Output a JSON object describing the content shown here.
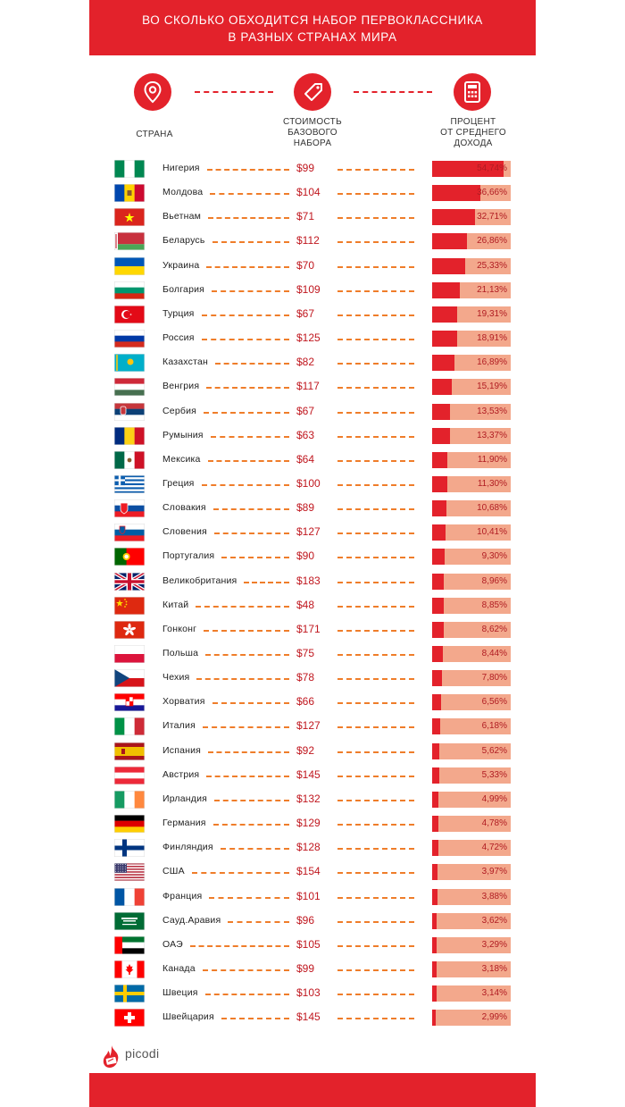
{
  "header": {
    "title_line1": "ВО СКОЛЬКО ОБХОДИТСЯ НАБОР ПЕРВОКЛАССНИКА",
    "title_line2": "В РАЗНЫХ СТРАНАХ МИРА"
  },
  "columns": {
    "country": [
      "СТРАНА"
    ],
    "cost": [
      "СТОИМОСТЬ",
      "БАЗОВОГО",
      "НАБОРА"
    ],
    "percent": [
      "ПРОЦЕНТ",
      "ОТ СРЕДНЕГО",
      "ДОХОДА"
    ]
  },
  "icons": {
    "country": "map-pin-icon",
    "cost": "price-tag-icon",
    "percent": "calculator-icon"
  },
  "colors": {
    "brand_red": "#e3222b",
    "bar_background": "#f3a88c",
    "dash_orange": "#ef7d2a",
    "price_text": "#c0171f"
  },
  "logo": {
    "text": "picodi"
  },
  "chart_data": {
    "type": "bar",
    "orientation": "horizontal",
    "title": "ВО СКОЛЬКО ОБХОДИТСЯ НАБОР ПЕРВОКЛАССНИКА В РАЗНЫХ СТРАНАХ МИРА",
    "xlim": [
      0,
      60
    ],
    "rows": [
      {
        "country": "Нигерия",
        "price": "$99",
        "percent": 54.74,
        "percent_label": "54,74%",
        "flag": "nigeria"
      },
      {
        "country": "Молдова",
        "price": "$104",
        "percent": 36.66,
        "percent_label": "36,66%",
        "flag": "moldova"
      },
      {
        "country": "Вьетнам",
        "price": "$71",
        "percent": 32.71,
        "percent_label": "32,71%",
        "flag": "vietnam"
      },
      {
        "country": "Беларусь",
        "price": "$112",
        "percent": 26.86,
        "percent_label": "26,86%",
        "flag": "belarus"
      },
      {
        "country": "Украина",
        "price": "$70",
        "percent": 25.33,
        "percent_label": "25,33%",
        "flag": "ukraine"
      },
      {
        "country": "Болгария",
        "price": "$109",
        "percent": 21.13,
        "percent_label": "21,13%",
        "flag": "bulgaria"
      },
      {
        "country": "Турция",
        "price": "$67",
        "percent": 19.31,
        "percent_label": "19,31%",
        "flag": "turkey"
      },
      {
        "country": "Россия",
        "price": "$125",
        "percent": 18.91,
        "percent_label": "18,91%",
        "flag": "russia"
      },
      {
        "country": "Казахстан",
        "price": "$82",
        "percent": 16.89,
        "percent_label": "16,89%",
        "flag": "kazakhstan"
      },
      {
        "country": "Венгрия",
        "price": "$117",
        "percent": 15.19,
        "percent_label": "15,19%",
        "flag": "hungary"
      },
      {
        "country": "Сербия",
        "price": "$67",
        "percent": 13.53,
        "percent_label": "13,53%",
        "flag": "serbia"
      },
      {
        "country": "Румыния",
        "price": "$63",
        "percent": 13.37,
        "percent_label": "13,37%",
        "flag": "romania"
      },
      {
        "country": "Мексика",
        "price": "$64",
        "percent": 11.9,
        "percent_label": "11,90%",
        "flag": "mexico"
      },
      {
        "country": "Греция",
        "price": "$100",
        "percent": 11.3,
        "percent_label": "11,30%",
        "flag": "greece"
      },
      {
        "country": "Словакия",
        "price": "$89",
        "percent": 10.68,
        "percent_label": "10,68%",
        "flag": "slovakia"
      },
      {
        "country": "Словения",
        "price": "$127",
        "percent": 10.41,
        "percent_label": "10,41%",
        "flag": "slovenia"
      },
      {
        "country": "Португалия",
        "price": "$90",
        "percent": 9.3,
        "percent_label": "9,30%",
        "flag": "portugal"
      },
      {
        "country": "Великобритания",
        "price": "$183",
        "percent": 8.96,
        "percent_label": "8,96%",
        "flag": "uk"
      },
      {
        "country": "Китай",
        "price": "$48",
        "percent": 8.85,
        "percent_label": "8,85%",
        "flag": "china"
      },
      {
        "country": "Гонконг",
        "price": "$171",
        "percent": 8.62,
        "percent_label": "8,62%",
        "flag": "hongkong"
      },
      {
        "country": "Польша",
        "price": "$75",
        "percent": 8.44,
        "percent_label": "8,44%",
        "flag": "poland"
      },
      {
        "country": "Чехия",
        "price": "$78",
        "percent": 7.8,
        "percent_label": "7,80%",
        "flag": "czechia"
      },
      {
        "country": "Хорватия",
        "price": "$66",
        "percent": 6.56,
        "percent_label": "6,56%",
        "flag": "croatia"
      },
      {
        "country": "Италия",
        "price": "$127",
        "percent": 6.18,
        "percent_label": "6,18%",
        "flag": "italy"
      },
      {
        "country": "Испания",
        "price": "$92",
        "percent": 5.62,
        "percent_label": "5,62%",
        "flag": "spain"
      },
      {
        "country": "Австрия",
        "price": "$145",
        "percent": 5.33,
        "percent_label": "5,33%",
        "flag": "austria"
      },
      {
        "country": "Ирландия",
        "price": "$132",
        "percent": 4.99,
        "percent_label": "4,99%",
        "flag": "ireland"
      },
      {
        "country": "Германия",
        "price": "$129",
        "percent": 4.78,
        "percent_label": "4,78%",
        "flag": "germany"
      },
      {
        "country": "Финляндия",
        "price": "$128",
        "percent": 4.72,
        "percent_label": "4,72%",
        "flag": "finland"
      },
      {
        "country": "США",
        "price": "$154",
        "percent": 3.97,
        "percent_label": "3,97%",
        "flag": "usa"
      },
      {
        "country": "Франция",
        "price": "$101",
        "percent": 3.88,
        "percent_label": "3,88%",
        "flag": "france"
      },
      {
        "country": "Сауд.Аравия",
        "price": "$96",
        "percent": 3.62,
        "percent_label": "3,62%",
        "flag": "saudi"
      },
      {
        "country": "ОАЭ",
        "price": "$105",
        "percent": 3.29,
        "percent_label": "3,29%",
        "flag": "uae"
      },
      {
        "country": "Канада",
        "price": "$99",
        "percent": 3.18,
        "percent_label": "3,18%",
        "flag": "canada"
      },
      {
        "country": "Швеция",
        "price": "$103",
        "percent": 3.14,
        "percent_label": "3,14%",
        "flag": "sweden"
      },
      {
        "country": "Швейцария",
        "price": "$145",
        "percent": 2.99,
        "percent_label": "2,99%",
        "flag": "switzerland"
      }
    ]
  }
}
